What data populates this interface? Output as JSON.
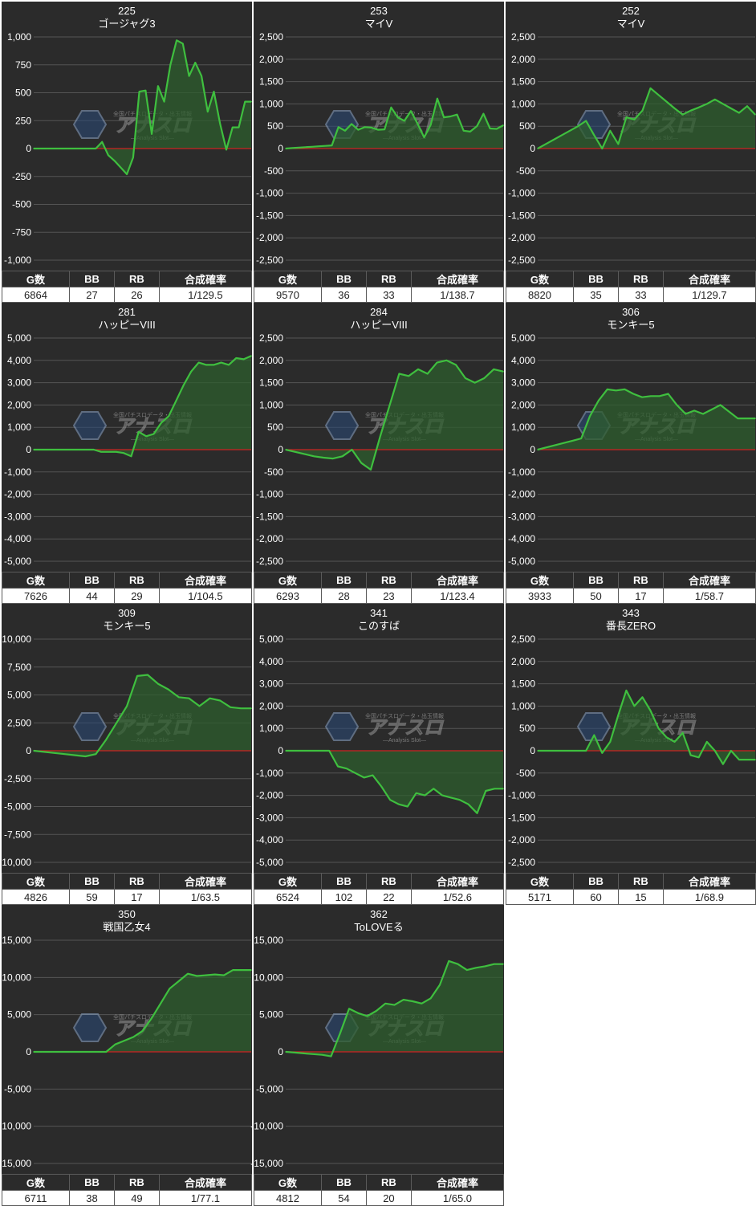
{
  "stat_headers": [
    "G数",
    "BB",
    "RB",
    "合成確率"
  ],
  "watermark": {
    "brand": "アナスロ",
    "sub": "—Analysis Slot—",
    "tagline": "全国パチスロデータ・出玉情報"
  },
  "colors": {
    "panel": "#2b2b2b",
    "line": "#3fbf3f",
    "fill": "#2e5e2e",
    "zero_line": "#cc2222",
    "grid": "#555555"
  },
  "charts": [
    {
      "number": "225",
      "machine": "ゴージャグ3",
      "stats": [
        "6864",
        "27",
        "26",
        "1/129.5"
      ],
      "y_ticks": [
        "1,000",
        "750",
        "500",
        "250",
        "0",
        "-250",
        "-500",
        "-750",
        "-1,000"
      ],
      "chart_data": {
        "type": "area",
        "ylim": [
          -1000,
          1000
        ],
        "values": [
          0,
          0,
          0,
          0,
          0,
          0,
          0,
          0,
          0,
          0,
          0,
          60,
          -60,
          -110,
          -170,
          -230,
          -80,
          510,
          520,
          130,
          560,
          420,
          750,
          970,
          940,
          650,
          770,
          650,
          330,
          510,
          220,
          -10,
          190,
          190,
          420,
          420
        ]
      }
    },
    {
      "number": "253",
      "machine": "マイV",
      "stats": [
        "9570",
        "36",
        "33",
        "1/138.7"
      ],
      "y_ticks": [
        "2,500",
        "2,000",
        "1,500",
        "1,000",
        "500",
        "0",
        "-500",
        "-1,000",
        "-1,500",
        "-2,000",
        "-2,500"
      ],
      "chart_data": {
        "type": "area",
        "ylim": [
          -2500,
          2500
        ],
        "values": [
          0,
          10,
          20,
          30,
          40,
          50,
          60,
          70,
          480,
          400,
          550,
          420,
          480,
          470,
          420,
          430,
          920,
          700,
          620,
          840,
          560,
          250,
          530,
          1120,
          700,
          720,
          760,
          400,
          380,
          500,
          780,
          450,
          440,
          520
        ]
      }
    },
    {
      "number": "252",
      "machine": "マイV",
      "stats": [
        "8820",
        "35",
        "33",
        "1/129.7"
      ],
      "y_ticks": [
        "2,500",
        "2,000",
        "1,500",
        "1,000",
        "500",
        "0",
        "-500",
        "-1,000",
        "-1,500",
        "-2,000",
        "-2,500"
      ],
      "chart_data": {
        "type": "area",
        "ylim": [
          -2500,
          2500
        ],
        "values": [
          0,
          100,
          200,
          300,
          400,
          500,
          620,
          300,
          0,
          400,
          100,
          700,
          650,
          850,
          1350,
          1200,
          1050,
          900,
          760,
          850,
          920,
          1000,
          1100,
          1000,
          900,
          800,
          950,
          760
        ]
      }
    },
    {
      "number": "281",
      "machine": "ハッピーVIII",
      "stats": [
        "7626",
        "44",
        "29",
        "1/104.5"
      ],
      "y_ticks": [
        "5,000",
        "4,000",
        "3,000",
        "2,000",
        "1,000",
        "0",
        "-1,000",
        "-2,000",
        "-3,000",
        "-4,000",
        "-5,000"
      ],
      "chart_data": {
        "type": "area",
        "ylim": [
          -5000,
          5000
        ],
        "values": [
          0,
          0,
          0,
          0,
          0,
          0,
          0,
          0,
          0,
          -100,
          -100,
          -100,
          -150,
          -300,
          800,
          600,
          700,
          1200,
          1500,
          2200,
          2900,
          3500,
          3900,
          3800,
          3800,
          3900,
          3800,
          4100,
          4050,
          4200
        ]
      }
    },
    {
      "number": "284",
      "machine": "ハッピーVIII",
      "stats": [
        "6293",
        "28",
        "23",
        "1/123.4"
      ],
      "y_ticks": [
        "2,500",
        "2,000",
        "1,500",
        "1,000",
        "500",
        "0",
        "-500",
        "-1,000",
        "-1,500",
        "-2,000",
        "-2,500"
      ],
      "chart_data": {
        "type": "area",
        "ylim": [
          -2500,
          2500
        ],
        "values": [
          0,
          -50,
          -100,
          -150,
          -180,
          -200,
          -150,
          0,
          -300,
          -450,
          300,
          1000,
          1700,
          1650,
          1800,
          1700,
          1950,
          2000,
          1900,
          1600,
          1500,
          1600,
          1800,
          1750
        ]
      }
    },
    {
      "number": "306",
      "machine": "モンキー5",
      "stats": [
        "3933",
        "50",
        "17",
        "1/58.7"
      ],
      "y_ticks": [
        "5,000",
        "4,000",
        "3,000",
        "2,000",
        "1,000",
        "0",
        "-1,000",
        "-2,000",
        "-3,000",
        "-4,000",
        "-5,000"
      ],
      "chart_data": {
        "type": "area",
        "ylim": [
          -5000,
          5000
        ],
        "values": [
          0,
          100,
          200,
          300,
          400,
          500,
          1500,
          2200,
          2700,
          2650,
          2700,
          2500,
          2350,
          2400,
          2400,
          2500,
          2000,
          1600,
          1750,
          1600,
          1800,
          2000,
          1700,
          1400,
          1400,
          1400
        ]
      }
    },
    {
      "number": "309",
      "machine": "モンキー5",
      "stats": [
        "4826",
        "59",
        "17",
        "1/63.5"
      ],
      "y_ticks": [
        "10,000",
        "7,500",
        "5,000",
        "2,500",
        "0",
        "-2,500",
        "-5,000",
        "-7,500",
        "-10,000"
      ],
      "chart_data": {
        "type": "area",
        "ylim": [
          -10000,
          10000
        ],
        "values": [
          0,
          -100,
          -200,
          -300,
          -400,
          -500,
          -300,
          1000,
          2500,
          4000,
          6700,
          6800,
          6000,
          5500,
          4800,
          4700,
          4000,
          4700,
          4500,
          3900,
          3800,
          3800
        ]
      }
    },
    {
      "number": "341",
      "machine": "このすば",
      "stats": [
        "6524",
        "102",
        "22",
        "1/52.6"
      ],
      "y_ticks": [
        "5,000",
        "4,000",
        "3,000",
        "2,000",
        "1,000",
        "0",
        "-1,000",
        "-2,000",
        "-3,000",
        "-4,000",
        "-5,000"
      ],
      "chart_data": {
        "type": "area",
        "ylim": [
          -5000,
          5000
        ],
        "values": [
          0,
          0,
          0,
          0,
          0,
          0,
          -700,
          -800,
          -1000,
          -1200,
          -1100,
          -1600,
          -2200,
          -2400,
          -2500,
          -1900,
          -2000,
          -1700,
          -2000,
          -2100,
          -2200,
          -2400,
          -2800,
          -1800,
          -1700,
          -1700
        ]
      }
    },
    {
      "number": "343",
      "machine": "番長ZERO",
      "stats": [
        "5171",
        "60",
        "15",
        "1/68.9"
      ],
      "y_ticks": [
        "2,500",
        "2,000",
        "1,500",
        "1,000",
        "500",
        "0",
        "-500",
        "-1,000",
        "-1,500",
        "-2,000",
        "-2,500"
      ],
      "chart_data": {
        "type": "area",
        "ylim": [
          -2500,
          2500
        ],
        "values": [
          0,
          0,
          0,
          0,
          0,
          0,
          0,
          350,
          -50,
          200,
          800,
          1350,
          1000,
          1200,
          900,
          500,
          300,
          200,
          400,
          -100,
          -150,
          200,
          0,
          -300,
          0,
          -200,
          -200,
          -200
        ]
      }
    },
    {
      "number": "350",
      "machine": "戦国乙女4",
      "stats": [
        "6711",
        "38",
        "49",
        "1/77.1"
      ],
      "y_ticks": [
        "15,000",
        "10,000",
        "5,000",
        "0",
        "-5,000",
        "-10,000",
        "-15,000"
      ],
      "chart_data": {
        "type": "area",
        "ylim": [
          -15000,
          15000
        ],
        "values": [
          0,
          0,
          0,
          0,
          0,
          0,
          0,
          0,
          0,
          1000,
          1500,
          2000,
          2800,
          4500,
          6500,
          8500,
          9500,
          10500,
          10200,
          10300,
          10400,
          10300,
          11000,
          11000,
          11000
        ]
      }
    },
    {
      "number": "362",
      "machine": "ToLOVEる",
      "stats": [
        "4812",
        "54",
        "20",
        "1/65.0"
      ],
      "y_ticks": [
        "15,000",
        "10,000",
        "5,000",
        "0",
        "-5,000",
        "-10,000",
        "-15,000"
      ],
      "chart_data": {
        "type": "area",
        "ylim": [
          -15000,
          15000
        ],
        "values": [
          0,
          -100,
          -200,
          -300,
          -400,
          -600,
          2500,
          5800,
          5200,
          4800,
          5500,
          6500,
          6300,
          7000,
          6800,
          6500,
          7200,
          9000,
          12200,
          11800,
          11000,
          11300,
          11500,
          11800,
          11800
        ]
      }
    }
  ]
}
